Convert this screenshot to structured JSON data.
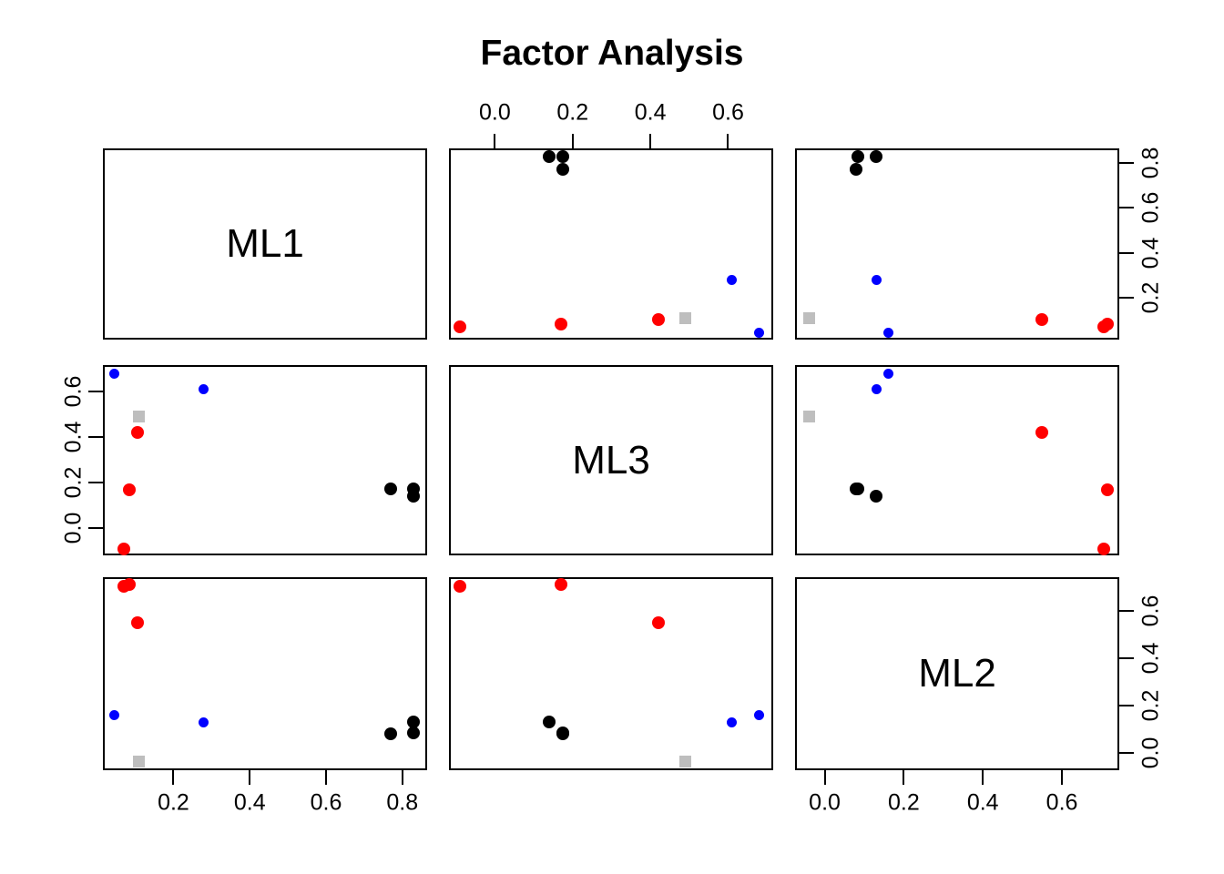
{
  "title": "Factor Analysis",
  "chart_data": {
    "type": "scatter",
    "subtype": "scatterplot-matrix-pairs",
    "title": "Factor Analysis",
    "variables": [
      "ML1",
      "ML3",
      "ML2"
    ],
    "diagonal_labels": [
      "ML1",
      "ML3",
      "ML2"
    ],
    "grid": "off",
    "legend": "none",
    "axes": {
      "ML1": {
        "range": [
          0.015,
          0.865
        ],
        "ticks": [
          {
            "label": "0.2",
            "value": 0.2
          },
          {
            "label": "0.4",
            "value": 0.4
          },
          {
            "label": "0.6",
            "value": 0.6
          },
          {
            "label": "0.8",
            "value": 0.8
          }
        ]
      },
      "ML3": {
        "range": [
          -0.118,
          0.716
        ],
        "ticks": [
          {
            "label": "0.0",
            "value": 0.0
          },
          {
            "label": "0.2",
            "value": 0.2
          },
          {
            "label": "0.4",
            "value": 0.4
          },
          {
            "label": "0.6",
            "value": 0.6
          }
        ]
      },
      "ML2": {
        "range": [
          -0.075,
          0.745
        ],
        "ticks": [
          {
            "label": "0.0",
            "value": 0.0
          },
          {
            "label": "0.2",
            "value": 0.2
          },
          {
            "label": "0.4",
            "value": 0.4
          },
          {
            "label": "0.6",
            "value": 0.6
          }
        ]
      }
    },
    "axis_strips": [
      {
        "side": "top",
        "row": 0,
        "col": 1,
        "var": "ML3"
      },
      {
        "side": "right",
        "row": 0,
        "col": 2,
        "var": "ML1"
      },
      {
        "side": "left",
        "row": 1,
        "col": 0,
        "var": "ML3"
      },
      {
        "side": "bottom",
        "row": 2,
        "col": 0,
        "var": "ML1"
      },
      {
        "side": "bottom",
        "row": 2,
        "col": 2,
        "var": "ML2"
      },
      {
        "side": "right",
        "row": 2,
        "col": 2,
        "var": "ML2"
      }
    ],
    "colors": {
      "factor_ML1_group": "#000000",
      "factor_ML2_group": "#ff0000",
      "factor_ML3_group": "#0000ff",
      "unassigned_group": "#bebebe"
    },
    "points": [
      {
        "group": "factor_ML1_group",
        "color": "#000000",
        "shape": "circle",
        "diameter": 14,
        "loadings": {
          "ML1": 0.83,
          "ML3": 0.14,
          "ML2": 0.13
        }
      },
      {
        "group": "factor_ML1_group",
        "color": "#000000",
        "shape": "circle",
        "diameter": 14,
        "loadings": {
          "ML1": 0.83,
          "ML3": 0.175,
          "ML2": 0.085
        }
      },
      {
        "group": "factor_ML1_group",
        "color": "#000000",
        "shape": "circle",
        "diameter": 14,
        "loadings": {
          "ML1": 0.77,
          "ML3": 0.175,
          "ML2": 0.08
        }
      },
      {
        "group": "factor_ML2_group",
        "color": "#ff0000",
        "shape": "circle",
        "diameter": 14,
        "loadings": {
          "ML1": 0.07,
          "ML3": -0.09,
          "ML2": 0.705
        }
      },
      {
        "group": "factor_ML2_group",
        "color": "#ff0000",
        "shape": "circle",
        "diameter": 14,
        "loadings": {
          "ML1": 0.085,
          "ML3": 0.17,
          "ML2": 0.715
        }
      },
      {
        "group": "factor_ML2_group",
        "color": "#ff0000",
        "shape": "circle",
        "diameter": 14,
        "loadings": {
          "ML1": 0.105,
          "ML3": 0.42,
          "ML2": 0.55
        }
      },
      {
        "group": "factor_ML3_group",
        "color": "#0000ff",
        "shape": "circle",
        "diameter": 11,
        "loadings": {
          "ML1": 0.045,
          "ML3": 0.68,
          "ML2": 0.16
        }
      },
      {
        "group": "factor_ML3_group",
        "color": "#0000ff",
        "shape": "circle",
        "diameter": 11,
        "loadings": {
          "ML1": 0.28,
          "ML3": 0.61,
          "ML2": 0.13
        }
      },
      {
        "group": "unassigned_group",
        "color": "#bebebe",
        "shape": "square",
        "diameter": 13,
        "loadings": {
          "ML1": 0.11,
          "ML3": 0.49,
          "ML2": -0.04
        }
      }
    ]
  }
}
